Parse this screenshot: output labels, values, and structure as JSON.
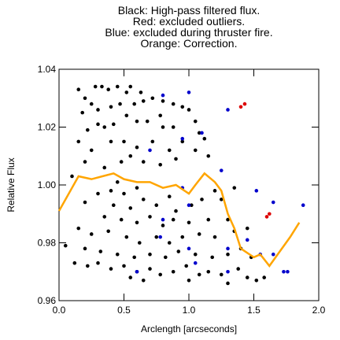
{
  "chart_data": {
    "type": "scatter",
    "title": [
      "Black: High-pass filtered flux.",
      "Red: excluded outliers.",
      "Blue: excluded during thruster fire.",
      "Orange: Correction."
    ],
    "xlabel": "Arclength [arcseconds]",
    "ylabel": "Relative Flux",
    "xlim": [
      0,
      2
    ],
    "ylim": [
      0.96,
      1.04
    ],
    "xticks": [
      {
        "value": 0,
        "label": "0.0"
      },
      0.5,
      {
        "value": 1,
        "label": "1.0"
      },
      1.5,
      {
        "value": 2,
        "label": "2.0"
      }
    ],
    "yticks": [
      0.96,
      0.98,
      {
        "value": 1,
        "label": "1.00"
      },
      1.02,
      1.04
    ],
    "series": [
      {
        "color": "#000000",
        "style": "points",
        "x": [
          0.15,
          0.2,
          0.28,
          0.33,
          0.38,
          0.45,
          0.52,
          0.55,
          0.63,
          0.18,
          0.25,
          0.3,
          0.4,
          0.47,
          0.58,
          0.65,
          0.72,
          0.8,
          0.88,
          0.95,
          1.0,
          0.78,
          0.68,
          0.6,
          0.52,
          0.42,
          0.35,
          0.3,
          0.22,
          0.8,
          0.88,
          1.05,
          1.08,
          1.12,
          0.15,
          0.25,
          0.4,
          0.5,
          0.6,
          0.72,
          0.85,
          0.95,
          1.05,
          1.15,
          0.2,
          0.35,
          0.48,
          0.55,
          0.65,
          0.78,
          0.9,
          0.45,
          0.4,
          0.5,
          0.6,
          0.1,
          0.3,
          0.2,
          0.42,
          0.55,
          0.65,
          0.75,
          0.85,
          0.9,
          1.02,
          1.2,
          1.25,
          1.35,
          1.1,
          0.35,
          0.48,
          0.6,
          0.7,
          0.8,
          0.88,
          1.0,
          1.15,
          1.3,
          0.15,
          0.25,
          0.38,
          0.52,
          0.62,
          0.75,
          0.85,
          0.95,
          1.08,
          1.2,
          1.35,
          1.45,
          0.05,
          0.2,
          0.32,
          0.45,
          0.58,
          0.7,
          0.82,
          0.92,
          1.05,
          1.18,
          1.3,
          1.4,
          1.48,
          0.12,
          0.22,
          0.3,
          0.4,
          0.5,
          0.6,
          0.7,
          0.78,
          0.88,
          0.98,
          1.08,
          1.15,
          1.25,
          1.38,
          1.45,
          1.52,
          1.58,
          0.55,
          0.65,
          1.0,
          1.3
        ],
        "values": [
          1.033,
          1.03,
          1.034,
          1.034,
          1.033,
          1.034,
          1.032,
          1.034,
          1.032,
          1.025,
          1.028,
          1.026,
          1.027,
          1.028,
          1.028,
          1.029,
          1.03,
          1.029,
          1.028,
          1.027,
          1.026,
          1.024,
          1.022,
          1.022,
          1.024,
          1.021,
          1.02,
          1.021,
          1.019,
          1.02,
          1.02,
          1.022,
          1.018,
          1.016,
          1.015,
          1.012,
          1.015,
          1.015,
          1.013,
          1.015,
          1.012,
          1.015,
          1.012,
          1.01,
          1.008,
          1.006,
          1.008,
          1.01,
          1.008,
          1.007,
          1.009,
          1.001,
          0.998,
          0.997,
          0.999,
          1.003,
          0.997,
          0.994,
          0.993,
          0.992,
          0.995,
          0.993,
          0.996,
          0.991,
          0.993,
          0.998,
          0.995,
          0.999,
          0.995,
          0.989,
          0.988,
          0.987,
          0.989,
          0.986,
          0.988,
          0.987,
          0.988,
          0.988,
          0.985,
          0.983,
          0.984,
          0.982,
          0.98,
          0.982,
          0.98,
          0.982,
          0.983,
          0.982,
          0.984,
          0.985,
          0.979,
          0.978,
          0.977,
          0.976,
          0.975,
          0.976,
          0.975,
          0.977,
          0.976,
          0.975,
          0.976,
          0.978,
          0.975,
          0.973,
          0.972,
          0.973,
          0.971,
          0.972,
          0.97,
          0.971,
          0.969,
          0.97,
          0.972,
          0.969,
          0.97,
          0.969,
          0.971,
          0.968,
          0.967,
          0.968,
          0.968,
          0.967,
          0.967,
          0.966
        ]
      },
      {
        "color": "#0000cc",
        "style": "points",
        "x": [
          0.8,
          1.0,
          1.3,
          1.1,
          0.95,
          0.7,
          1.25,
          0.95,
          1.52,
          1.0,
          1.65,
          1.88,
          0.8,
          1.3,
          1.45,
          0.78,
          1.05,
          1.55,
          1.65,
          1.73,
          1.76,
          0.6,
          1.0,
          1.3
        ],
        "values": [
          1.031,
          1.032,
          1.026,
          1.018,
          1.016,
          1.012,
          1.005,
          0.999,
          0.998,
          0.993,
          0.994,
          0.993,
          0.988,
          0.978,
          0.981,
          0.982,
          0.973,
          0.976,
          0.976,
          0.97,
          0.97,
          0.97,
          0.978,
          0.97
        ]
      },
      {
        "color": "#dd0000",
        "style": "points",
        "x": [
          1.4,
          1.43,
          1.6,
          1.62
        ],
        "values": [
          1.027,
          1.028,
          0.989,
          0.99
        ]
      },
      {
        "color": "#ffa500",
        "style": "line",
        "x": [
          0,
          0.05,
          0.1,
          0.15,
          0.25,
          0.42,
          0.5,
          0.6,
          0.7,
          0.8,
          0.9,
          1.0,
          1.05,
          1.12,
          1.2,
          1.25,
          1.3,
          1.35,
          1.4,
          1.5,
          1.55,
          1.62,
          1.7,
          1.78,
          1.85
        ],
        "values": [
          0.991,
          0.995,
          0.999,
          1.003,
          1.002,
          1.004,
          1.002,
          1.001,
          1.001,
          0.999,
          1.0,
          0.997,
          1.0,
          1.004,
          1.001,
          0.998,
          0.99,
          0.985,
          0.978,
          0.975,
          0.976,
          0.972,
          0.977,
          0.982,
          0.987
        ]
      }
    ]
  }
}
